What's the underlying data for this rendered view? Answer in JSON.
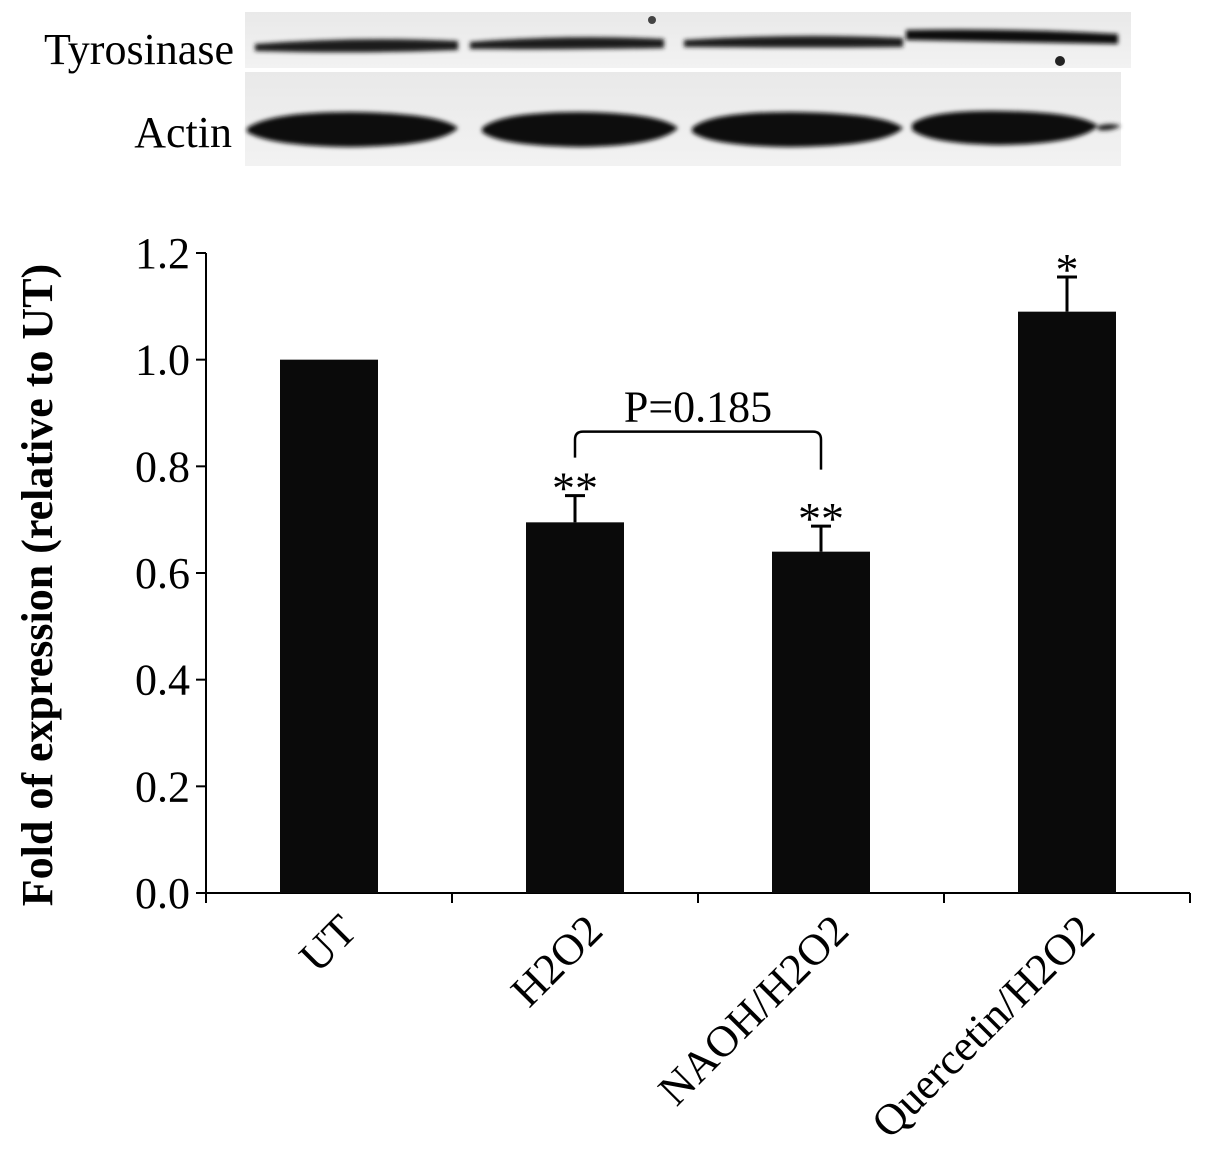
{
  "blot": {
    "rows": [
      {
        "label": "Tyrosinase"
      },
      {
        "label": "Actin"
      }
    ]
  },
  "chart_data": {
    "type": "bar",
    "categories": [
      "UT",
      "H2O2",
      "NAOH/H2O2",
      "Quercetin/H2O2"
    ],
    "values": [
      1.0,
      0.695,
      0.64,
      1.09
    ],
    "errors": [
      0.0,
      0.05,
      0.048,
      0.065
    ],
    "significance": [
      "",
      "**",
      "**",
      "*"
    ],
    "title": "",
    "xlabel": "",
    "ylabel": "Fold of expression (relative to UT)",
    "ylim": [
      0,
      1.2
    ],
    "yticks": [
      "0.0",
      "0.2",
      "0.4",
      "0.6",
      "0.8",
      "1.0",
      "1.2"
    ],
    "bar_color": "#0a0a0a",
    "grid": false,
    "comparison": {
      "from": 1,
      "to": 2,
      "label": "P=0.185"
    }
  }
}
